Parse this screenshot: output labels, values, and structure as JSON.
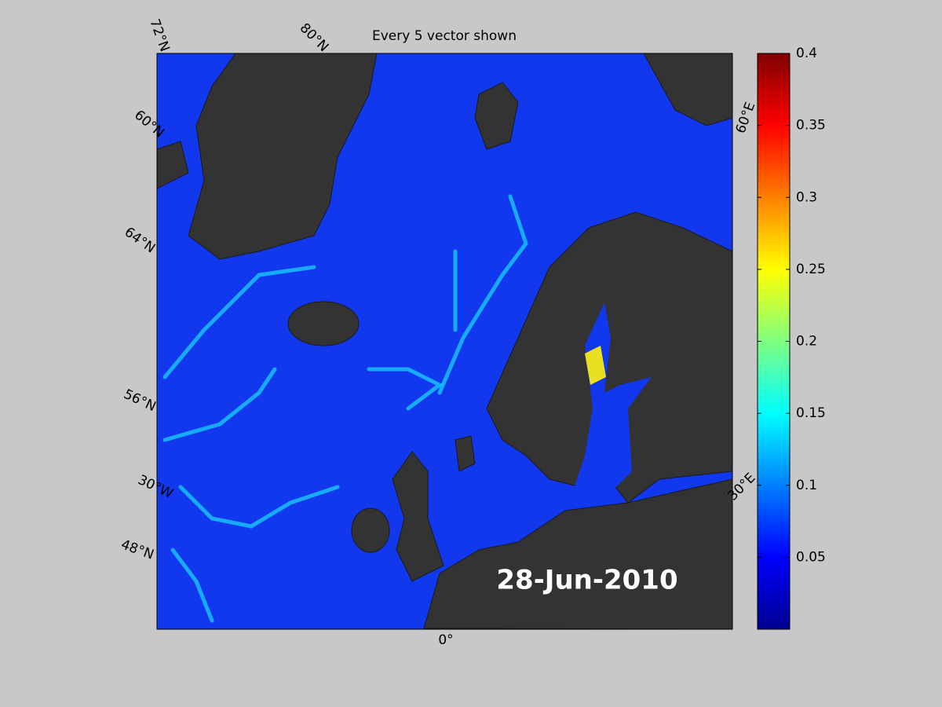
{
  "map": {
    "title": "Every 5 vector shown",
    "date_label": "28-Jun-2010",
    "graticule_labels": [
      "72°N",
      "80°N",
      "60°N",
      "64°N",
      "56°N",
      "30°W",
      "48°N",
      "0°",
      "60°E",
      "30°E"
    ],
    "colorbar": {
      "colormap": "jet",
      "lim": [
        0,
        0.4
      ],
      "ticks": [
        0.05,
        0.1,
        0.15,
        0.2,
        0.25,
        0.3,
        0.35,
        0.4
      ]
    }
  }
}
